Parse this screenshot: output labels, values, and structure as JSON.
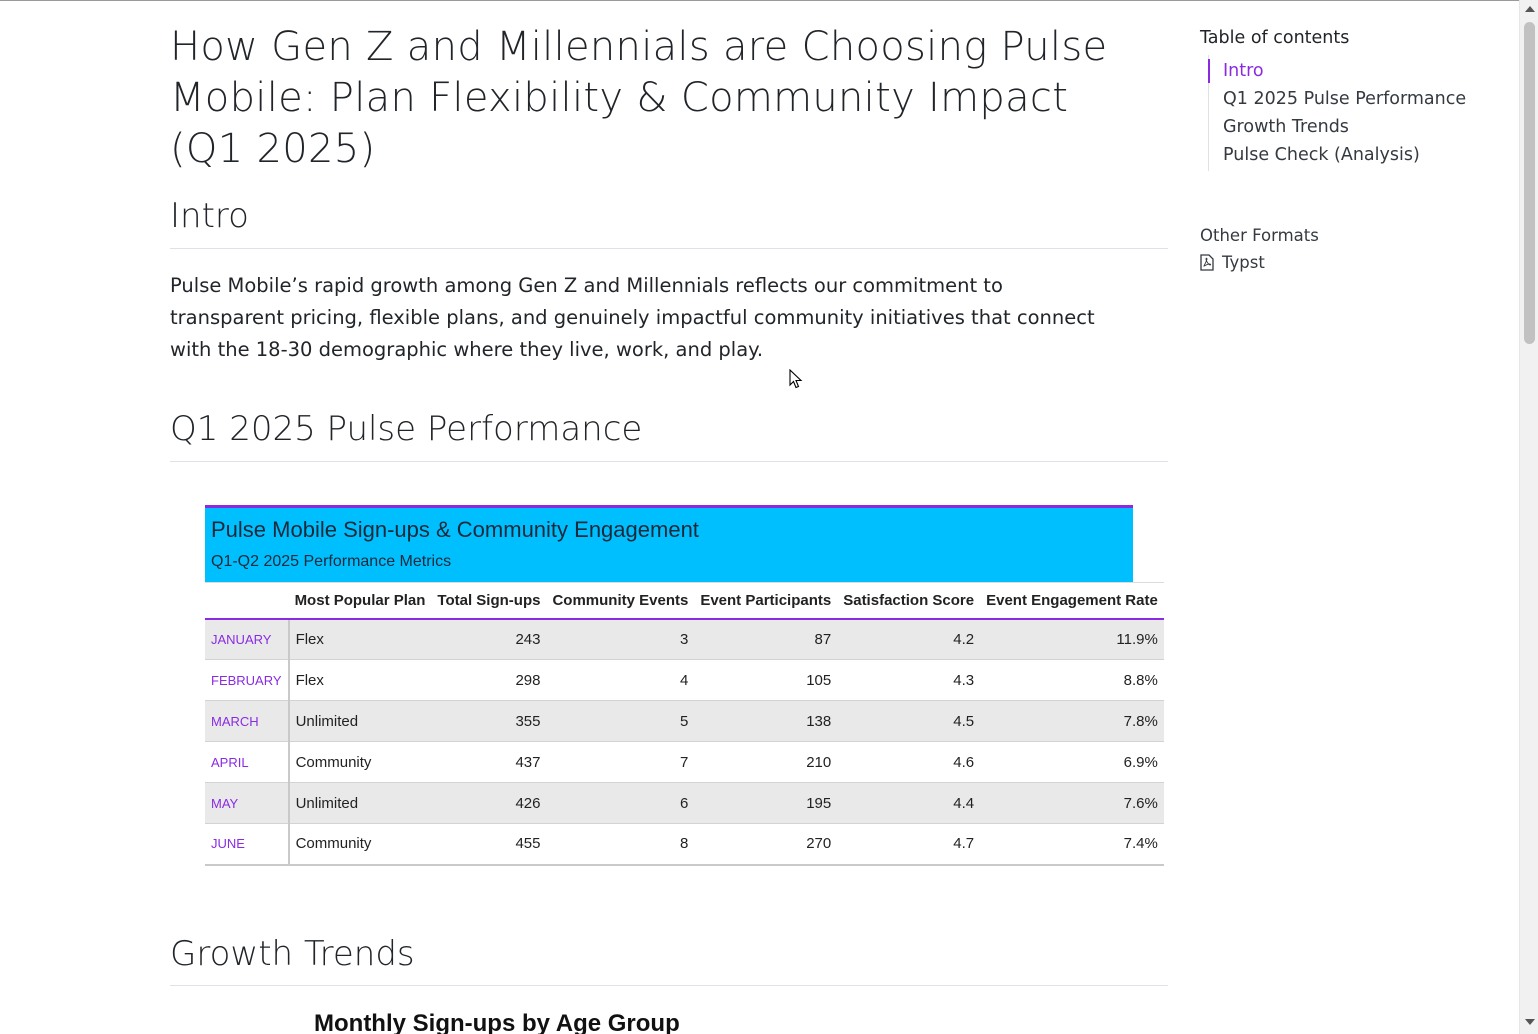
{
  "article": {
    "title": "How Gen Z and Millennials are Choosing Pulse Mobile: Plan Flexibility & Community Impact (Q1 2025)",
    "sections": {
      "intro": {
        "heading": "Intro",
        "paragraph": "Pulse Mobile’s rapid growth among Gen Z and Millennials reflects our commitment to transparent pricing, flexible plans, and genuinely impactful community initiatives that connect with the 18-30 demographic where they live, work, and play."
      },
      "performance": {
        "heading": "Q1 2025 Pulse Performance"
      },
      "growth": {
        "heading": "Growth Trends",
        "chart_title": "Monthly Sign-ups by Age Group"
      }
    }
  },
  "table": {
    "title": "Pulse Mobile Sign-ups & Community Engagement",
    "subtitle": "Q1-Q2 2025 Performance Metrics",
    "columns": [
      "",
      "Most Popular Plan",
      "Total Sign-ups",
      "Community Events",
      "Event Participants",
      "Satisfaction Score",
      "Event Engagement Rate"
    ],
    "rows": [
      {
        "month": "January",
        "plan": "Flex",
        "signups": "243",
        "events": "3",
        "participants": "87",
        "score": "4.2",
        "rate": "11.9%"
      },
      {
        "month": "February",
        "plan": "Flex",
        "signups": "298",
        "events": "4",
        "participants": "105",
        "score": "4.3",
        "rate": "8.8%"
      },
      {
        "month": "March",
        "plan": "Unlimited",
        "signups": "355",
        "events": "5",
        "participants": "138",
        "score": "4.5",
        "rate": "7.8%"
      },
      {
        "month": "April",
        "plan": "Community",
        "signups": "437",
        "events": "7",
        "participants": "210",
        "score": "4.6",
        "rate": "6.9%"
      },
      {
        "month": "May",
        "plan": "Unlimited",
        "signups": "426",
        "events": "6",
        "participants": "195",
        "score": "4.4",
        "rate": "7.6%"
      },
      {
        "month": "June",
        "plan": "Community",
        "signups": "455",
        "events": "8",
        "participants": "270",
        "score": "4.7",
        "rate": "7.4%"
      }
    ],
    "colors": {
      "header_bg": "#00bfff",
      "accent": "#8a2be2",
      "stripe": "#e9e9ea"
    }
  },
  "toc": {
    "title": "Table of contents",
    "items": [
      {
        "label": "Intro",
        "active": true
      },
      {
        "label": "Q1 2025 Pulse Performance",
        "active": false
      },
      {
        "label": "Growth Trends",
        "active": false
      },
      {
        "label": "Pulse Check (Analysis)",
        "active": false
      }
    ],
    "accent": "#8a2be2"
  },
  "other_formats": {
    "title": "Other Formats",
    "links": [
      {
        "label": "Typst",
        "icon": "file-pdf-icon"
      }
    ]
  }
}
